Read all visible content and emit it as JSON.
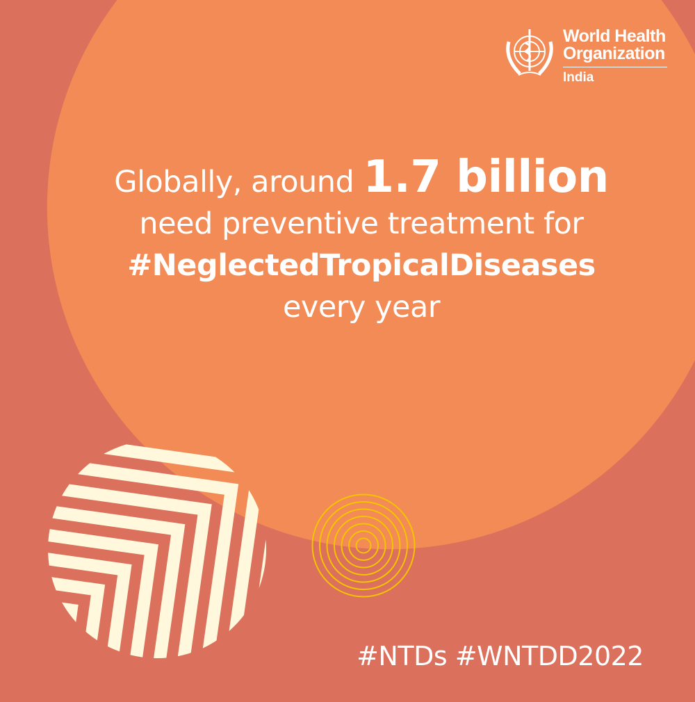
{
  "colors": {
    "background": "#db705c",
    "circle": "#f28b55",
    "stripes": "#fff8dc",
    "rings": "#f5c400",
    "text": "#ffffff"
  },
  "logo": {
    "name_line1": "World Health",
    "name_line2": "Organization",
    "country": "India",
    "icon": "who-emblem-icon"
  },
  "headline": {
    "line1_prefix": "Globally, around ",
    "line1_emphasis": "1.7 billion",
    "line2": "need preventive treatment for",
    "line3": "#NeglectedTropicalDiseases",
    "line4": "every year"
  },
  "hashtags": "#NTDs #WNTDD2022"
}
